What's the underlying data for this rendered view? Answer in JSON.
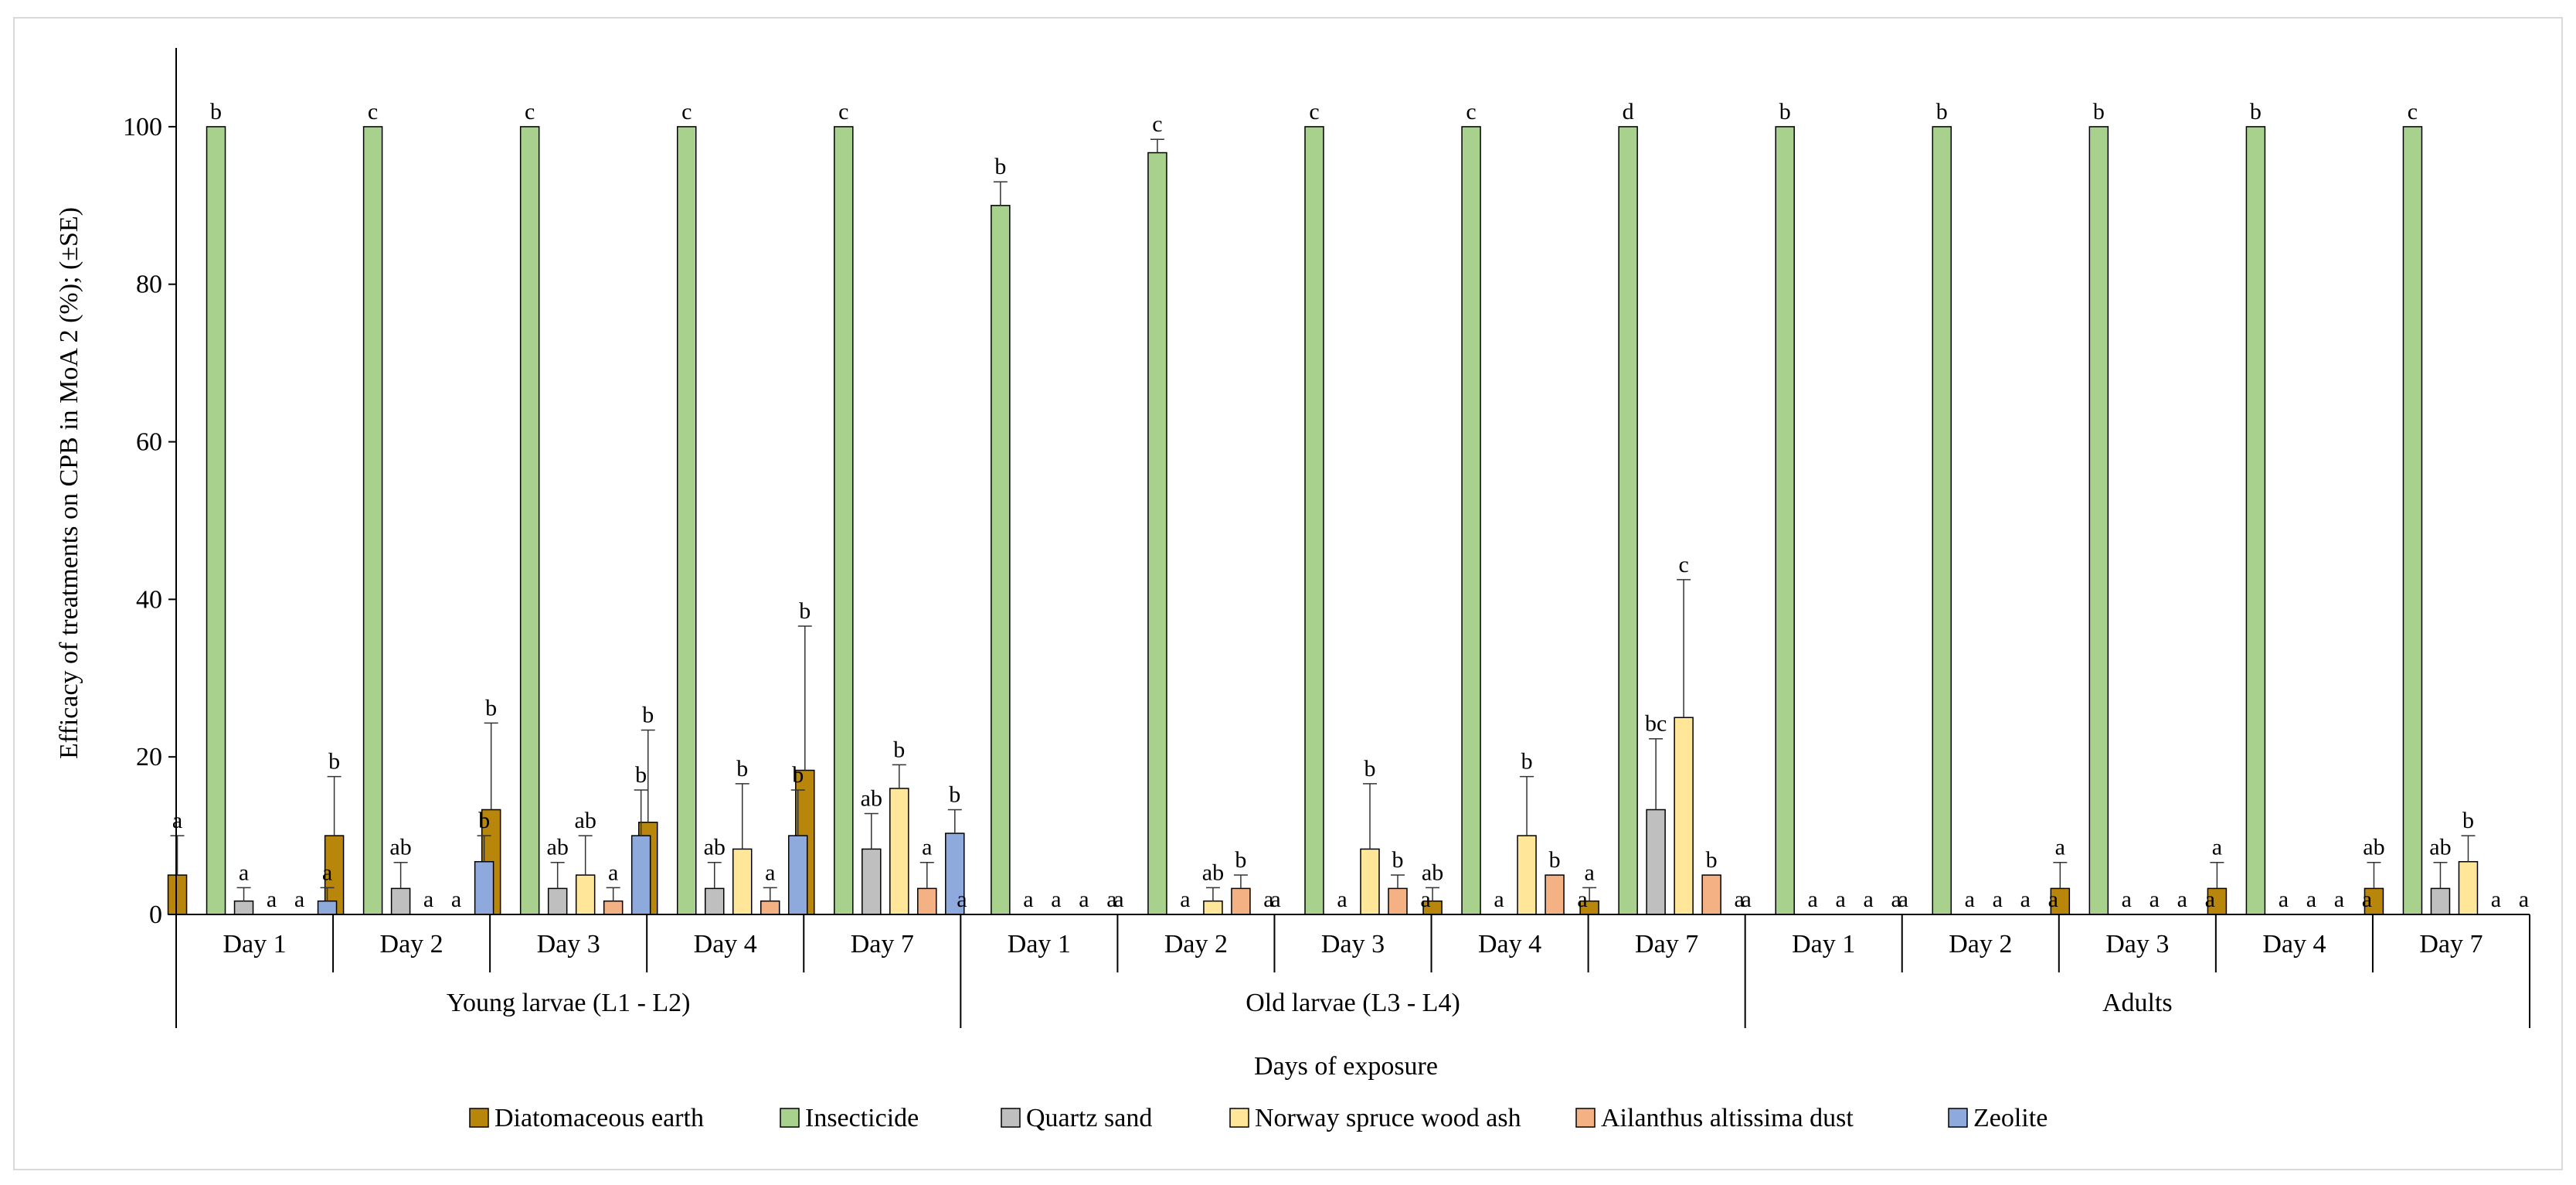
{
  "chart_data": {
    "type": "bar",
    "ylabel": "Efficacy of treatments on CPB in MoA 2 (%); (±SE)",
    "xlabel": "Days of exposure",
    "ylim": [
      0,
      110
    ],
    "yticks": [
      0,
      20,
      40,
      60,
      80,
      100
    ],
    "groups": [
      {
        "name": "Young larvae (L1 - L2)",
        "days": [
          "Day 1",
          "Day 2",
          "Day 3",
          "Day 4",
          "Day 7"
        ]
      },
      {
        "name": "Old larvae (L3 - L4)",
        "days": [
          "Day 1",
          "Day 2",
          "Day 3",
          "Day 4",
          "Day 7"
        ]
      },
      {
        "name": "Adults",
        "days": [
          "Day 1",
          "Day 2",
          "Day 3",
          "Day 4",
          "Day 7"
        ]
      }
    ],
    "series": [
      {
        "name": "Diatomaceous earth",
        "color": "#B8860B",
        "values": [
          5,
          10,
          13.3,
          11.7,
          18.3,
          0,
          0,
          0,
          1.7,
          1.7,
          0,
          0,
          3.3,
          3.3,
          3.3
        ],
        "errors": [
          5,
          7.5,
          11,
          11.7,
          18.3,
          0,
          0,
          0,
          1.7,
          1.7,
          0,
          0,
          3.3,
          3.3,
          3.3
        ],
        "letters": [
          "a",
          "b",
          "b",
          "b",
          "b",
          "a",
          "a",
          "a",
          "ab",
          "a",
          "a",
          "a",
          "a",
          "a",
          "ab"
        ]
      },
      {
        "name": "Insecticide",
        "color": "#A9D18E",
        "values": [
          100,
          100,
          100,
          100,
          100,
          90,
          96.7,
          100,
          100,
          100,
          100,
          100,
          100,
          100,
          100
        ],
        "errors": [
          0,
          0,
          0,
          0,
          0,
          3,
          1.7,
          0,
          0,
          0,
          0,
          0,
          0,
          0,
          0
        ],
        "letters": [
          "b",
          "c",
          "c",
          "c",
          "c",
          "b",
          "c",
          "c",
          "c",
          "d",
          "b",
          "b",
          "b",
          "b",
          "c"
        ]
      },
      {
        "name": "Quartz sand",
        "color": "#BFBFBF",
        "values": [
          1.7,
          3.3,
          3.3,
          3.3,
          8.3,
          0,
          0,
          0,
          0,
          13.3,
          0,
          0,
          0,
          0,
          3.3
        ],
        "errors": [
          1.7,
          3.3,
          3.3,
          3.3,
          4.5,
          0,
          0,
          0,
          0,
          9,
          0,
          0,
          0,
          0,
          3.3
        ],
        "letters": [
          "a",
          "ab",
          "ab",
          "ab",
          "ab",
          "a",
          "a",
          "a",
          "a",
          "bc",
          "a",
          "a",
          "a",
          "a",
          "ab"
        ]
      },
      {
        "name": "Norway spruce wood ash",
        "color": "#FFE699",
        "values": [
          0,
          0,
          5,
          8.3,
          16,
          0,
          1.7,
          8.3,
          10,
          25,
          0,
          0,
          0,
          0,
          6.7
        ],
        "errors": [
          0,
          0,
          5,
          8.3,
          3,
          0,
          1.7,
          8.3,
          7.5,
          17.5,
          0,
          0,
          0,
          0,
          3.3
        ],
        "letters": [
          "a",
          "a",
          "ab",
          "b",
          "b",
          "a",
          "ab",
          "b",
          "b",
          "c",
          "a",
          "a",
          "a",
          "a",
          "b"
        ]
      },
      {
        "name": "Ailanthus altissima dust",
        "color": "#F4B183",
        "values": [
          0,
          0,
          1.7,
          1.7,
          3.3,
          0,
          3.3,
          3.3,
          5,
          5,
          0,
          0,
          0,
          0,
          0
        ],
        "errors": [
          0,
          0,
          1.7,
          1.7,
          3.3,
          0,
          1.7,
          1.7,
          0,
          0,
          0,
          0,
          0,
          0,
          0
        ],
        "letters": [
          "a",
          "a",
          "a",
          "a",
          "a",
          "a",
          "b",
          "b",
          "b",
          "b",
          "a",
          "a",
          "a",
          "a",
          "a"
        ]
      },
      {
        "name": "Zeolite",
        "color": "#8EA9DB",
        "values": [
          1.7,
          6.7,
          10,
          10,
          10.3,
          0,
          0,
          0,
          0,
          0,
          0,
          0,
          0,
          0,
          0
        ],
        "errors": [
          1.7,
          3.3,
          5.8,
          5.8,
          3,
          0,
          0,
          0,
          0,
          0,
          0,
          0,
          0,
          0,
          0
        ],
        "letters": [
          "a",
          "b",
          "b",
          "b",
          "b",
          "a",
          "a",
          "a",
          "a",
          "a",
          "a",
          "a",
          "a",
          "a",
          "a"
        ]
      }
    ]
  }
}
